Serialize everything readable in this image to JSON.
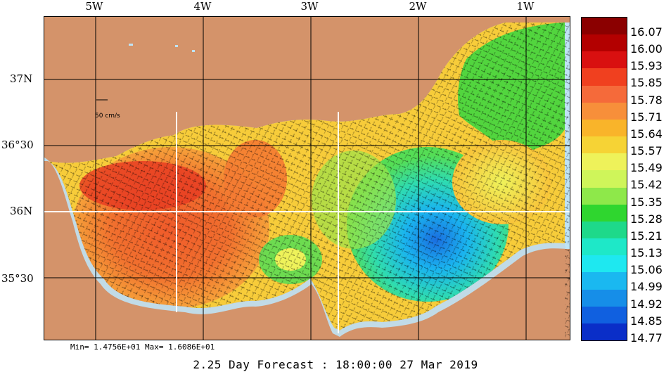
{
  "map": {
    "longitude_labels": [
      "5W",
      "4W",
      "3W",
      "2W",
      "1W"
    ],
    "latitude_labels": [
      "37N",
      "36°30",
      "36N",
      "35°30"
    ],
    "current_scale_label": "50 cm/s",
    "colors": {
      "land": "#d4936a",
      "coast": "#bfe3f5",
      "grid": "#000000",
      "highlight_grid": "#ffffff"
    }
  },
  "colorbar": {
    "labels": [
      "16.07",
      "16.00",
      "15.93",
      "15.85",
      "15.78",
      "15.71",
      "15.64",
      "15.57",
      "15.49",
      "15.42",
      "15.35",
      "15.28",
      "15.21",
      "15.13",
      "15.06",
      "14.99",
      "14.92",
      "14.85",
      "14.77"
    ],
    "colors": [
      "#8b0000",
      "#b30000",
      "#d91010",
      "#f0401f",
      "#f56a3a",
      "#f78f3a",
      "#f9b42a",
      "#f6d335",
      "#eef25a",
      "#cff55a",
      "#8ee84a",
      "#2fd62f",
      "#1ed98a",
      "#1ee8c8",
      "#1ee8f0",
      "#1ab8f0",
      "#168ee8",
      "#1060e0",
      "#0a2ec8"
    ]
  },
  "stats": {
    "text": "Min= 1.4756E+01  Max= 1.6086E+01"
  },
  "footer": {
    "forecast": "2.25 Day Forecast : 18:00:00  27 Mar 2019"
  }
}
